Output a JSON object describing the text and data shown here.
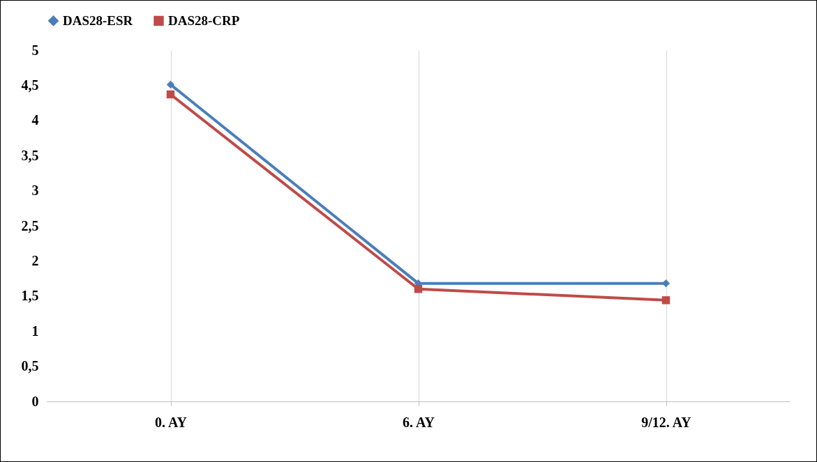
{
  "chart_data": {
    "type": "line",
    "categories": [
      "0. AY",
      "6. AY",
      "9/12. AY"
    ],
    "series": [
      {
        "name": "DAS28-ESR",
        "color": "#4a7ebb",
        "values": [
          4.51,
          1.68,
          1.68
        ],
        "marker": "diamond"
      },
      {
        "name": "DAS28-CRP",
        "color": "#be4b48",
        "values": [
          4.37,
          1.6,
          1.44
        ],
        "marker": "square"
      }
    ],
    "ylim": [
      0,
      5
    ],
    "yticks": [
      0,
      {
        "value": 0.5,
        "label": "0,5"
      },
      1,
      {
        "value": 1.5,
        "label": "1,5"
      },
      2,
      {
        "value": 2.5,
        "label": "2,5"
      },
      3,
      {
        "value": 3.5,
        "label": "3,5"
      },
      4,
      {
        "value": 4.5,
        "label": "4,5"
      },
      5
    ],
    "grid": "x",
    "legend": "top",
    "line_style": "solid"
  }
}
